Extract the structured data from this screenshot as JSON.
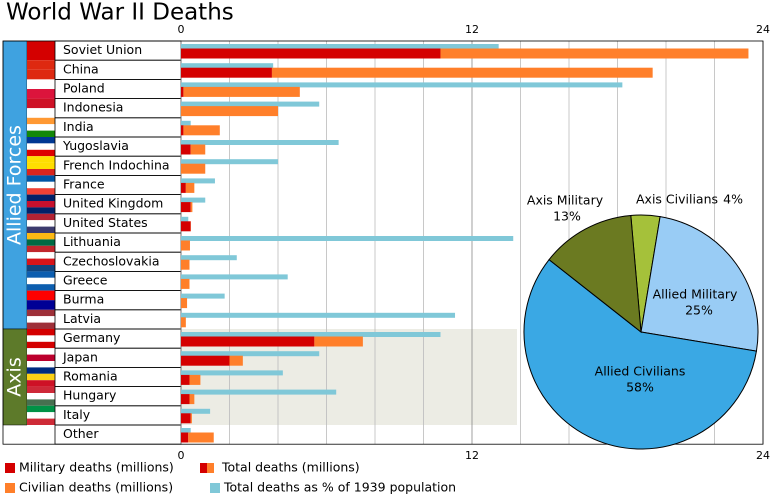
{
  "chart_data": [
    {
      "type": "hbar",
      "title": "World War II Deaths",
      "groups": [
        {
          "label": "Allied Forces",
          "color": "#3fa2e0",
          "categories": [
            "Soviet Union",
            "China",
            "Poland",
            "Indonesia",
            "India",
            "Yugoslavia",
            "French Indochina",
            "France",
            "United Kingdom",
            "United States",
            "Lithuania",
            "Czechoslovakia",
            "Greece",
            "Burma",
            "Latvia"
          ]
        },
        {
          "label": "Axis",
          "color": "#5d7a2a",
          "categories": [
            "Germany",
            "Japan",
            "Romania",
            "Hungary",
            "Italy"
          ]
        },
        {
          "label": null,
          "color": null,
          "categories": [
            "Other"
          ]
        }
      ],
      "series": [
        {
          "name": "Military deaths (millions)",
          "color": "#d40000",
          "values": [
            10.7,
            3.75,
            0.1,
            0,
            0.1,
            0.4,
            0,
            0.2,
            0.4,
            0.4,
            0,
            0,
            0,
            0,
            0,
            5.5,
            2.0,
            0.35,
            0.35,
            0.4,
            0.3
          ]
        },
        {
          "name": "Civilian deaths (millions)",
          "color": "#ff7f2a",
          "values": [
            12.7,
            15.7,
            4.8,
            4.0,
            1.5,
            0.6,
            1.0,
            0.35,
            0.07,
            0.01,
            0.37,
            0.35,
            0.35,
            0.25,
            0.2,
            2.0,
            0.55,
            0.45,
            0.2,
            0.05,
            1.05
          ]
        },
        {
          "name": "Total deaths as % of 1939 population",
          "color": "#80c8d8",
          "values": [
            13.1,
            3.8,
            18.2,
            5.7,
            0.4,
            6.5,
            4.0,
            1.4,
            1.0,
            0.3,
            13.7,
            2.3,
            4.4,
            1.8,
            11.3,
            10.7,
            5.7,
            4.2,
            6.4,
            1.2,
            0.4
          ]
        }
      ],
      "total_label": "Total deaths (millions)",
      "xlim": [
        0,
        24
      ],
      "xticks": [
        0,
        12,
        24
      ],
      "minor_xticks": [
        2,
        4,
        6,
        8,
        10,
        14,
        16,
        18,
        20,
        22
      ],
      "grid": true
    },
    {
      "type": "pie",
      "categories": [
        "Axis Civilians",
        "Allied Military",
        "Allied Civilians",
        "Axis Military"
      ],
      "values": [
        4,
        25,
        58,
        13
      ],
      "value_labels": [
        "4%",
        "25%",
        "58%",
        "13%"
      ],
      "colors": [
        "#a5c13a",
        "#99ccf5",
        "#3aa8e4",
        "#6b7a21"
      ]
    }
  ]
}
